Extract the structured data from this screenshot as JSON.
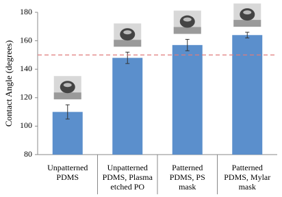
{
  "chart_data": {
    "type": "bar",
    "y_label": "Contact Angle (degrees)",
    "categories": [
      [
        "Unpatterned",
        "PDMS"
      ],
      [
        "Unpatterned",
        "PDMS, Plasma",
        "etched PO"
      ],
      [
        "Patterned",
        "PDMS, PS",
        "mask"
      ],
      [
        "Patterned",
        "PDMS, Mylar",
        "mask"
      ]
    ],
    "values": [
      110,
      148,
      157,
      164
    ],
    "errors": [
      5,
      4,
      4,
      2
    ],
    "color": "#5b8fcc",
    "ylim": [
      80,
      180
    ],
    "yticks": [
      80,
      100,
      120,
      140,
      160,
      180
    ],
    "reference_line": {
      "value": 150,
      "color": "#e07a7a"
    }
  }
}
